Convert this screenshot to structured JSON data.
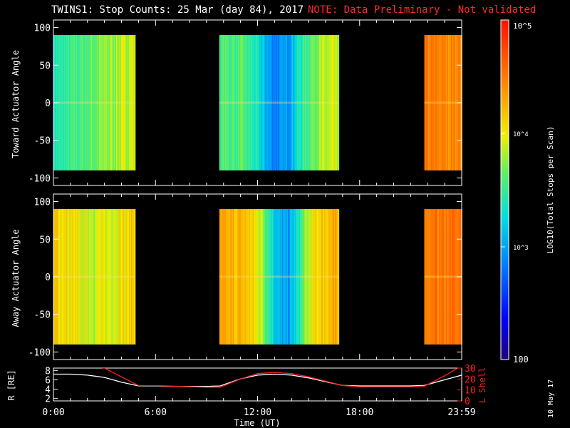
{
  "header": {
    "title": "TWINS1: Stop Counts: 25 Mar (day  84), 2017",
    "note": "NOTE: Data Preliminary - Not validated"
  },
  "footer": {
    "date_stamp": "10 May 17"
  },
  "chart_data": [
    {
      "type": "heatmap",
      "ylabel": "Toward Actuator Angle",
      "ylim": [
        -110,
        110
      ],
      "yticks": [
        100,
        50,
        0,
        -50,
        -100
      ],
      "data_angle_range": [
        -90,
        90
      ],
      "xlim": [
        0,
        24
      ],
      "xticks": [
        0,
        6,
        12,
        18,
        24
      ],
      "data_intervals_ut": [
        [
          0.0,
          4.8
        ],
        [
          9.75,
          16.75
        ],
        [
          21.8,
          24.0
        ]
      ],
      "colorbar": {
        "label": "LOG10(Total Stops per Scan)",
        "scale": "log",
        "range": [
          100,
          100000
        ],
        "tick_labels": [
          "10^5",
          "10^4",
          "10^3",
          "100"
        ]
      },
      "grid": false
    },
    {
      "type": "heatmap",
      "ylabel": "Away Actuator Angle",
      "ylim": [
        -110,
        110
      ],
      "yticks": [
        100,
        50,
        0,
        -50,
        -100
      ],
      "data_angle_range": [
        -90,
        90
      ],
      "xlim": [
        0,
        24
      ],
      "xticks": [
        0,
        6,
        12,
        18,
        24
      ],
      "data_intervals_ut": [
        [
          0.0,
          4.8
        ],
        [
          9.75,
          16.75
        ],
        [
          21.8,
          24.0
        ]
      ],
      "grid": false
    },
    {
      "type": "line",
      "xlabel": "Time (UT)",
      "ylabel": "R [RE]",
      "ylabel_right": "L Shell",
      "ylim": [
        1.5,
        8.5
      ],
      "yticks": [
        2,
        4,
        6,
        8
      ],
      "ylim_right": [
        0,
        30
      ],
      "yticks_right": [
        0,
        10,
        20,
        30
      ],
      "xlim": [
        0,
        24
      ],
      "xtick_labels": [
        "0:00",
        "6:00",
        "12:00",
        "18:00",
        "23:59"
      ],
      "series": [
        {
          "axis": "left",
          "color": "#ffffff",
          "x": [
            0,
            1,
            2,
            3,
            4,
            5,
            6,
            7,
            8,
            9,
            9.8,
            11,
            12,
            13,
            14,
            15,
            16,
            17,
            18,
            19,
            20,
            21,
            21.8,
            23,
            24
          ],
          "y": [
            7.2,
            7.2,
            7.0,
            6.5,
            5.5,
            4.7,
            4.7,
            4.6,
            4.6,
            4.6,
            4.7,
            6.2,
            7.0,
            7.2,
            7.0,
            6.4,
            5.6,
            4.8,
            4.7,
            4.7,
            4.7,
            4.7,
            4.8,
            6.0,
            7.0
          ]
        },
        {
          "axis": "right",
          "color": "#ff2020",
          "x": [
            0,
            3,
            4,
            5,
            6,
            7,
            8,
            9,
            9.8,
            11,
            12,
            13,
            14,
            15,
            16,
            17,
            18,
            19,
            20,
            21,
            21.8,
            23,
            24
          ],
          "y": [
            38,
            30,
            22,
            14,
            14,
            13.5,
            13,
            12.5,
            12.5,
            20,
            25,
            26,
            25,
            22,
            18,
            14,
            13,
            13,
            13,
            13,
            13.5,
            23,
            32
          ]
        }
      ]
    }
  ]
}
